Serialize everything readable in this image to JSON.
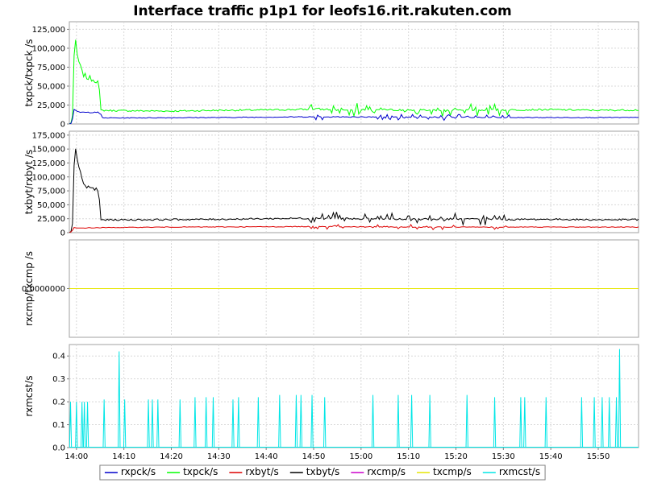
{
  "chart_data": [
    {
      "type": "line",
      "title": "Interface traffic p1p1 for leofs16.rit.rakuten.com",
      "ylabel": "txpck/txpck /s",
      "ylim": [
        0,
        135000
      ],
      "yticks": [
        "0",
        "25,000",
        "50,000",
        "75,000",
        "100,000",
        "125,000"
      ],
      "ytick_values": [
        0,
        25000,
        50000,
        75000,
        100000,
        125000
      ],
      "x_range": [
        "13:58:30",
        "15:58:30"
      ],
      "series": [
        {
          "name": "txpck/s",
          "color": "#00ff00",
          "points": [
            [
              "13:58:30",
              0
            ],
            [
              "13:59:00",
              2000
            ],
            [
              "13:59:20",
              20000
            ],
            [
              "13:59:35",
              125000
            ],
            [
              "13:59:50",
              105000
            ],
            [
              "14:00:10",
              90000
            ],
            [
              "14:00:40",
              78000
            ],
            [
              "14:01:10",
              68000
            ],
            [
              "14:02:00",
              62000
            ],
            [
              "14:03:00",
              60000
            ],
            [
              "14:04:00",
              58000
            ],
            [
              "14:04:40",
              55000
            ],
            [
              "14:05:10",
              18000
            ],
            [
              "14:10:00",
              17500
            ],
            [
              "14:20:00",
              17000
            ],
            [
              "14:30:00",
              18000
            ],
            [
              "14:40:00",
              18500
            ],
            [
              "14:50:00",
              19500
            ],
            [
              "15:00:00",
              19000
            ],
            [
              "15:10:00",
              18500
            ],
            [
              "15:20:00",
              18000
            ],
            [
              "15:30:00",
              18500
            ],
            [
              "15:40:00",
              19000
            ],
            [
              "15:50:00",
              18000
            ],
            [
              "15:58:30",
              18500
            ]
          ]
        },
        {
          "name": "rxpck/s",
          "color": "#0000cc",
          "points": [
            [
              "13:58:30",
              0
            ],
            [
              "13:59:00",
              1000
            ],
            [
              "13:59:30",
              19000
            ],
            [
              "14:00:00",
              16000
            ],
            [
              "14:02:00",
              15000
            ],
            [
              "14:04:00",
              16000
            ],
            [
              "14:05:00",
              14000
            ],
            [
              "14:05:30",
              8000
            ],
            [
              "14:10:00",
              8000
            ],
            [
              "14:30:00",
              8500
            ],
            [
              "14:50:00",
              9500
            ],
            [
              "15:10:00",
              9000
            ],
            [
              "15:30:00",
              8500
            ],
            [
              "15:58:30",
              8500
            ]
          ]
        }
      ]
    },
    {
      "type": "line",
      "ylabel": "txbyt/rxbyt /s",
      "ylim": [
        0,
        182000
      ],
      "yticks": [
        "0",
        "25,000",
        "50,000",
        "75,000",
        "100,000",
        "125,000",
        "150,000",
        "175,000"
      ],
      "ytick_values": [
        0,
        25000,
        50000,
        75000,
        100000,
        125000,
        150000,
        175000
      ],
      "x_range": [
        "13:58:30",
        "15:58:30"
      ],
      "series": [
        {
          "name": "txbyt/s",
          "color": "#000000",
          "points": [
            [
              "13:58:30",
              0
            ],
            [
              "13:59:00",
              3000
            ],
            [
              "13:59:20",
              30000
            ],
            [
              "13:59:35",
              175000
            ],
            [
              "13:59:50",
              150000
            ],
            [
              "14:00:10",
              125000
            ],
            [
              "14:00:40",
              110000
            ],
            [
              "14:01:10",
              95000
            ],
            [
              "14:02:00",
              82000
            ],
            [
              "14:03:00",
              80000
            ],
            [
              "14:04:00",
              78000
            ],
            [
              "14:04:40",
              75000
            ],
            [
              "14:05:10",
              23000
            ],
            [
              "14:10:00",
              23000
            ],
            [
              "14:30:00",
              24000
            ],
            [
              "14:50:00",
              26000
            ],
            [
              "15:00:00",
              25000
            ],
            [
              "15:10:00",
              24000
            ],
            [
              "15:20:00",
              24500
            ],
            [
              "15:30:00",
              23500
            ],
            [
              "15:40:00",
              24000
            ],
            [
              "15:50:00",
              23000
            ],
            [
              "15:58:30",
              23500
            ]
          ]
        },
        {
          "name": "rxbyt/s",
          "color": "#dd0000",
          "points": [
            [
              "13:58:30",
              0
            ],
            [
              "13:59:00",
              2000
            ],
            [
              "13:59:30",
              9000
            ],
            [
              "14:00:00",
              8000
            ],
            [
              "14:05:00",
              9000
            ],
            [
              "14:20:00",
              10000
            ],
            [
              "14:40:00",
              10500
            ],
            [
              "14:50:00",
              11000
            ],
            [
              "15:00:00",
              10500
            ],
            [
              "15:10:00",
              10000
            ],
            [
              "15:30:00",
              10000
            ],
            [
              "15:58:30",
              10000
            ]
          ]
        }
      ]
    },
    {
      "type": "line",
      "ylabel": "rxcmp/txcmp /s",
      "ylim": [
        -1,
        1
      ],
      "yticks": [
        "0.0000000"
      ],
      "ytick_values": [
        0
      ],
      "x_range": [
        "13:58:30",
        "15:58:30"
      ],
      "series": [
        {
          "name": "rxcmp/s",
          "color": "#cc00cc",
          "points": [
            [
              "13:58:30",
              0
            ],
            [
              "15:58:30",
              0
            ]
          ]
        },
        {
          "name": "txcmp/s",
          "color": "#e6e600",
          "points": [
            [
              "13:58:30",
              0
            ],
            [
              "15:58:30",
              0
            ]
          ]
        }
      ]
    },
    {
      "type": "line",
      "ylabel": "rxmcst/s",
      "ylim": [
        0,
        0.45
      ],
      "yticks": [
        "0.0",
        "0.1",
        "0.2",
        "0.3",
        "0.4"
      ],
      "ytick_values": [
        0,
        0.1,
        0.2,
        0.3,
        0.4
      ],
      "x_range": [
        "13:58:30",
        "15:58:30"
      ],
      "xticks": [
        "14:00",
        "14:10",
        "14:20",
        "14:30",
        "14:40",
        "14:50",
        "15:00",
        "15:10",
        "15:20",
        "15:30",
        "15:40",
        "15:50"
      ],
      "series": [
        {
          "name": "rxmcst/s",
          "color": "#00e6e6",
          "spikes": [
            [
              "13:58:45",
              0.2
            ],
            [
              "14:00:00",
              0.2
            ],
            [
              "14:01:10",
              0.2
            ],
            [
              "14:01:40",
              0.2
            ],
            [
              "14:02:20",
              0.2
            ],
            [
              "14:05:50",
              0.21
            ],
            [
              "14:09:00",
              0.42
            ],
            [
              "14:10:10",
              0.21
            ],
            [
              "14:15:10",
              0.21
            ],
            [
              "14:16:00",
              0.21
            ],
            [
              "14:17:10",
              0.21
            ],
            [
              "14:21:50",
              0.21
            ],
            [
              "14:25:00",
              0.22
            ],
            [
              "14:27:20",
              0.22
            ],
            [
              "14:28:50",
              0.22
            ],
            [
              "14:33:00",
              0.21
            ],
            [
              "14:34:10",
              0.22
            ],
            [
              "14:38:20",
              0.22
            ],
            [
              "14:42:50",
              0.23
            ],
            [
              "14:46:20",
              0.23
            ],
            [
              "14:47:20",
              0.23
            ],
            [
              "14:49:40",
              0.23
            ],
            [
              "14:52:20",
              0.22
            ],
            [
              "15:02:30",
              0.23
            ],
            [
              "15:07:50",
              0.23
            ],
            [
              "15:10:40",
              0.23
            ],
            [
              "15:14:30",
              0.23
            ],
            [
              "15:22:20",
              0.23
            ],
            [
              "15:28:10",
              0.22
            ],
            [
              "15:33:40",
              0.22
            ],
            [
              "15:34:30",
              0.22
            ],
            [
              "15:39:00",
              0.22
            ],
            [
              "15:46:30",
              0.22
            ],
            [
              "15:49:10",
              0.22
            ],
            [
              "15:50:50",
              0.22
            ],
            [
              "15:52:20",
              0.22
            ],
            [
              "15:53:50",
              0.22
            ],
            [
              "15:54:30",
              0.43
            ]
          ]
        }
      ]
    }
  ],
  "legend": [
    {
      "label": "rxpck/s",
      "color": "#0000cc"
    },
    {
      "label": "txpck/s",
      "color": "#00ff00"
    },
    {
      "label": "rxbyt/s",
      "color": "#dd0000"
    },
    {
      "label": "txbyt/s",
      "color": "#000000"
    },
    {
      "label": "rxcmp/s",
      "color": "#cc00cc"
    },
    {
      "label": "txcmp/s",
      "color": "#e6e600"
    },
    {
      "label": "rxmcst/s",
      "color": "#00e6e6"
    }
  ]
}
